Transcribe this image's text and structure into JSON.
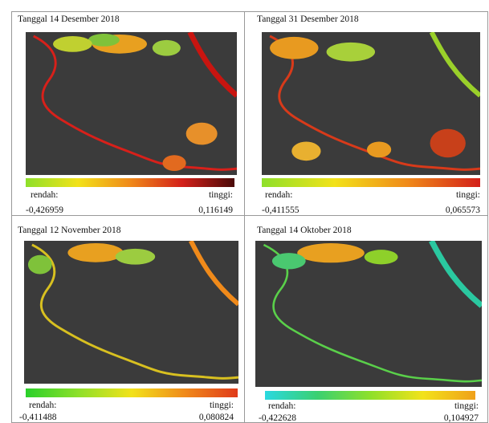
{
  "panels": [
    {
      "title": "Tanggal 14 Desember 2018",
      "low_label": "rendah:",
      "low_value": "-0,426959",
      "high_label": "tinggi:",
      "high_value": "0,116149"
    },
    {
      "title": "Tanggal 31 Desember 2018",
      "low_label": "rendah:",
      "low_value": "-0,411555",
      "high_label": "tinggi:",
      "high_value": "0,065573"
    },
    {
      "title": "Tanggal 12 November 2018",
      "low_label": "rendah:",
      "low_value": "-0,411488",
      "high_label": "tinggi:",
      "high_value": "0,080824"
    },
    {
      "title": "Tanggal 14 Oktober 2018",
      "low_label": "rendah:",
      "low_value": "-0,422628",
      "high_label": "tinggi:",
      "high_value": "0,104927"
    }
  ]
}
